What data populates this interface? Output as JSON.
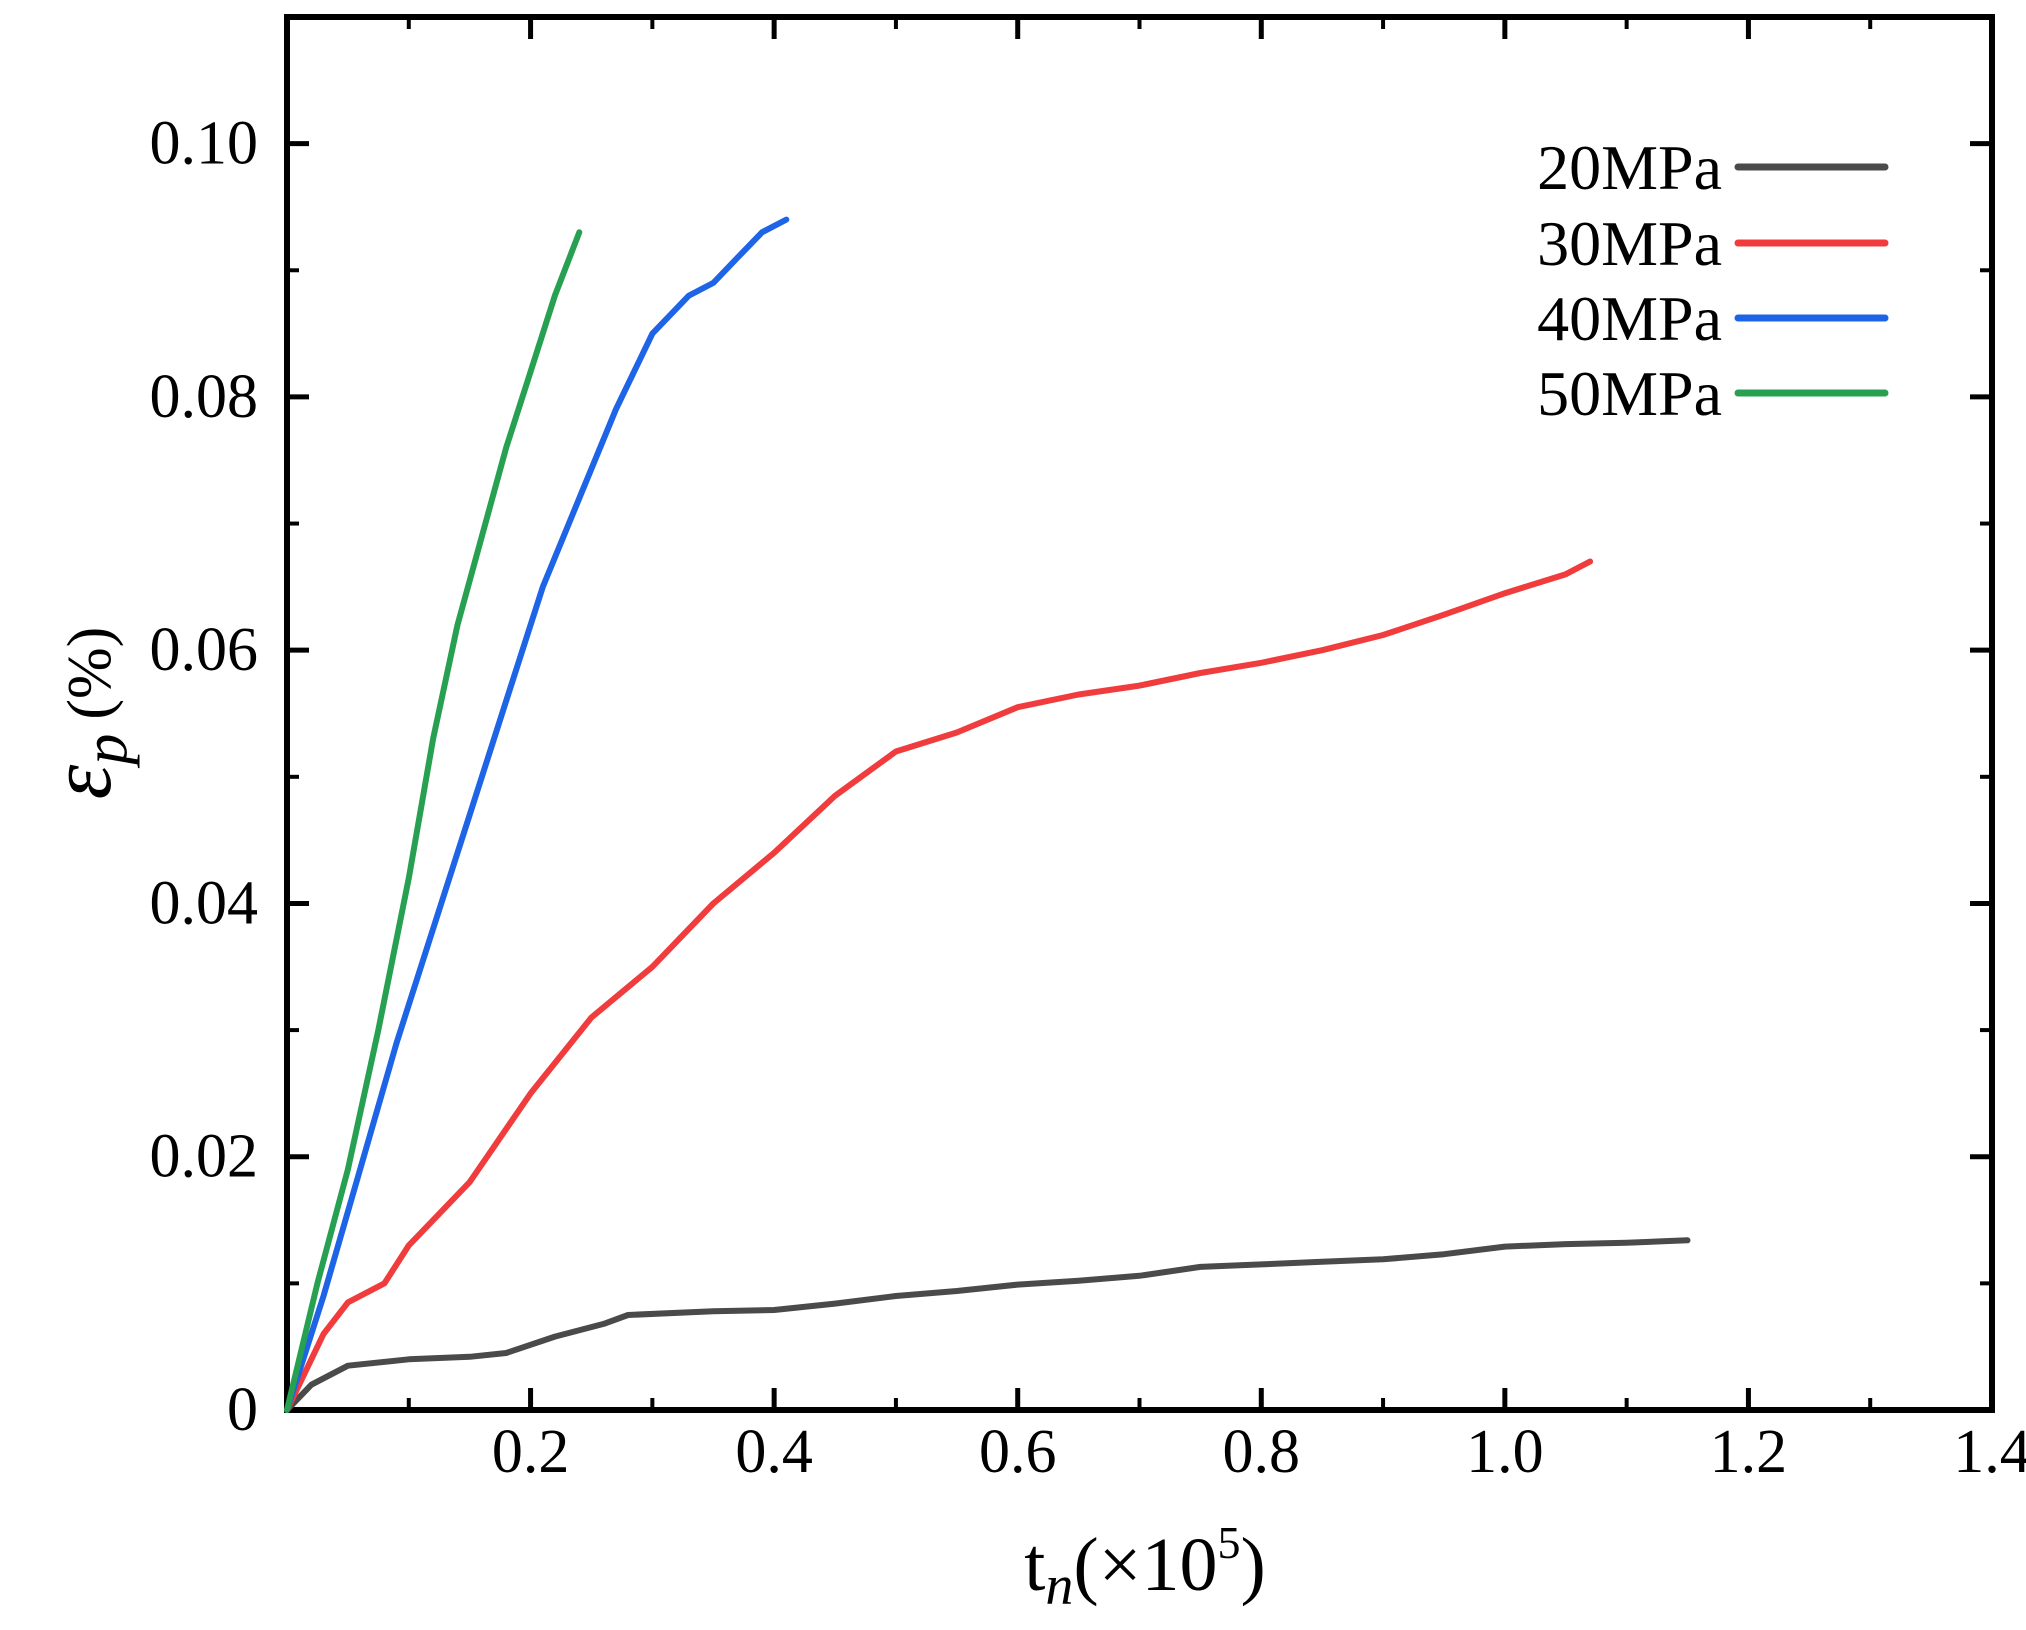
{
  "chart_data": {
    "type": "line",
    "title": "",
    "xlabel": {
      "base": "t",
      "subscript": "n",
      "suffix_pre": "(×10",
      "exponent": "5",
      "suffix_post": ")"
    },
    "ylabel": {
      "symbol": "ε",
      "subscript": "p",
      "unit": "(%)"
    },
    "xlim": [
      0,
      1.4
    ],
    "ylim": [
      0,
      0.11
    ],
    "x_ticks": [
      0.2,
      0.4,
      0.6,
      0.8,
      1.0,
      1.2,
      1.4
    ],
    "x_tick_labels": [
      "0.2",
      "0.4",
      "0.6",
      "0.8",
      "1.0",
      "1.2",
      "1.4"
    ],
    "y_ticks": [
      0,
      0.02,
      0.04,
      0.06,
      0.08,
      0.1
    ],
    "y_tick_labels": [
      "0",
      "0.02",
      "0.04",
      "0.06",
      "0.08",
      "0.10"
    ],
    "grid": false,
    "legend_position": "top-right",
    "series": [
      {
        "name": "20MPa",
        "color": "#4a4a4a",
        "x": [
          0,
          0.02,
          0.05,
          0.1,
          0.15,
          0.18,
          0.22,
          0.26,
          0.28,
          0.35,
          0.4,
          0.45,
          0.5,
          0.55,
          0.6,
          0.65,
          0.7,
          0.75,
          0.8,
          0.85,
          0.9,
          0.95,
          1.0,
          1.05,
          1.1,
          1.15
        ],
        "y": [
          0,
          0.002,
          0.0035,
          0.004,
          0.0042,
          0.0045,
          0.0058,
          0.0068,
          0.0075,
          0.0078,
          0.0079,
          0.0084,
          0.009,
          0.0094,
          0.0099,
          0.0102,
          0.0106,
          0.0113,
          0.0115,
          0.0117,
          0.0119,
          0.0123,
          0.0129,
          0.0131,
          0.0132,
          0.0134
        ]
      },
      {
        "name": "30MPa",
        "color": "#f03c3c",
        "x": [
          0,
          0.03,
          0.05,
          0.08,
          0.1,
          0.15,
          0.2,
          0.25,
          0.3,
          0.35,
          0.4,
          0.45,
          0.5,
          0.55,
          0.6,
          0.65,
          0.7,
          0.75,
          0.8,
          0.85,
          0.9,
          0.95,
          1.0,
          1.05,
          1.07
        ],
        "y": [
          0,
          0.006,
          0.0085,
          0.01,
          0.013,
          0.018,
          0.025,
          0.031,
          0.035,
          0.04,
          0.044,
          0.0485,
          0.052,
          0.0535,
          0.0555,
          0.0565,
          0.0572,
          0.0582,
          0.059,
          0.06,
          0.0612,
          0.0628,
          0.0645,
          0.066,
          0.067
        ]
      },
      {
        "name": "40MPa",
        "color": "#1e64e6",
        "x": [
          0,
          0.03,
          0.06,
          0.09,
          0.12,
          0.15,
          0.18,
          0.21,
          0.24,
          0.27,
          0.3,
          0.33,
          0.35,
          0.37,
          0.39,
          0.41
        ],
        "y": [
          0,
          0.009,
          0.019,
          0.029,
          0.038,
          0.047,
          0.056,
          0.065,
          0.072,
          0.079,
          0.085,
          0.088,
          0.089,
          0.091,
          0.093,
          0.094
        ]
      },
      {
        "name": "50MPa",
        "color": "#27a151",
        "x": [
          0,
          0.025,
          0.05,
          0.075,
          0.1,
          0.12,
          0.14,
          0.16,
          0.18,
          0.2,
          0.22,
          0.24
        ],
        "y": [
          0,
          0.01,
          0.019,
          0.03,
          0.042,
          0.053,
          0.062,
          0.069,
          0.076,
          0.082,
          0.088,
          0.093
        ]
      }
    ]
  }
}
